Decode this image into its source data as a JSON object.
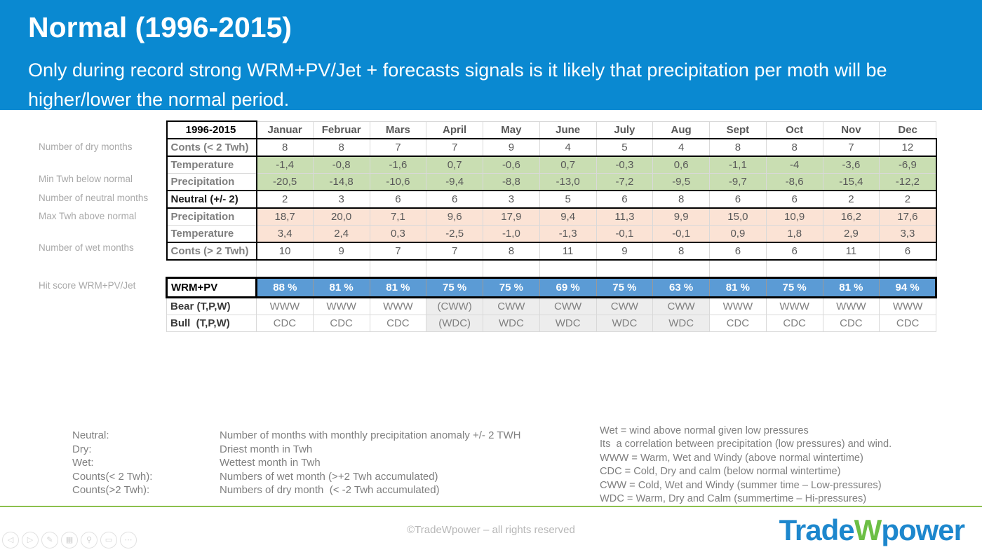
{
  "slide": {
    "title": "Normal (1996-2015)",
    "subtitle": "Only during record strong WRM+PV/Jet + forecasts signals is it likely that precipitation per moth will be higher/lower the normal period."
  },
  "annotations": {
    "left_labels": [
      "Number of dry months",
      "Min Twh below normal",
      "Number of neutral months",
      "Max Twh above normal",
      "Number of wet months",
      "Hit score WRM+PV/Jet"
    ]
  },
  "table": {
    "header": {
      "label": "1996-2015",
      "months": [
        "Januar",
        "Februar",
        "Mars",
        "April",
        "May",
        "June",
        "July",
        "Aug",
        "Sept",
        "Oct",
        "Nov",
        "Dec"
      ]
    },
    "rows": [
      {
        "type": "dry-count",
        "label": "Conts (< 2 Twh)",
        "values": [
          "8",
          "8",
          "7",
          "7",
          "9",
          "4",
          "5",
          "4",
          "8",
          "8",
          "7",
          "12"
        ]
      },
      {
        "type": "min-temp",
        "label": "Temperature",
        "values": [
          "-1,4",
          "-0,8",
          "-1,6",
          "0,7",
          "-0,6",
          "0,7",
          "-0,3",
          "0,6",
          "-1,1",
          "-4",
          "-3,6",
          "-6,9"
        ]
      },
      {
        "type": "min-precip",
        "label": "Precipitation",
        "values": [
          "-20,5",
          "-14,8",
          "-10,6",
          "-9,4",
          "-8,8",
          "-13,0",
          "-7,2",
          "-9,5",
          "-9,7",
          "-8,6",
          "-15,4",
          "-12,2"
        ]
      },
      {
        "type": "neutral",
        "label": "Neutral (+/- 2)",
        "values": [
          "2",
          "3",
          "6",
          "6",
          "3",
          "5",
          "6",
          "8",
          "6",
          "6",
          "2",
          "2"
        ]
      },
      {
        "type": "max-precip",
        "label": "Precipitation",
        "values": [
          "18,7",
          "20,0",
          "7,1",
          "9,6",
          "17,9",
          "9,4",
          "11,3",
          "9,9",
          "15,0",
          "10,9",
          "16,2",
          "17,6"
        ]
      },
      {
        "type": "max-temp",
        "label": "Temperature",
        "values": [
          "3,4",
          "2,4",
          "0,3",
          "-2,5",
          "-1,0",
          "-1,3",
          "-0,1",
          "-0,1",
          "0,9",
          "1,8",
          "2,9",
          "3,3"
        ]
      },
      {
        "type": "wet-count",
        "label": "Conts (> 2 Twh)",
        "values": [
          "10",
          "9",
          "7",
          "7",
          "8",
          "11",
          "9",
          "8",
          "6",
          "6",
          "11",
          "6"
        ]
      },
      {
        "type": "spacer",
        "label": "",
        "values": [
          "",
          "",
          "",
          "",
          "",
          "",
          "",
          "",
          "",
          "",
          "",
          ""
        ]
      },
      {
        "type": "hit-score",
        "label": "WRM+PV",
        "values": [
          "88 %",
          "81 %",
          "81 %",
          "75 %",
          "75 %",
          "69 %",
          "75 %",
          "63 %",
          "81 %",
          "75 %",
          "81 %",
          "94 %"
        ]
      },
      {
        "type": "bear",
        "label": "Bear (T,P,W)",
        "values": [
          "WWW",
          "WWW",
          "WWW",
          "(CWW)",
          "CWW",
          "CWW",
          "CWW",
          "CWW",
          "WWW",
          "WWW",
          "WWW",
          "WWW"
        ]
      },
      {
        "type": "bull",
        "label": "Bull  (T,P,W)",
        "values": [
          "CDC",
          "CDC",
          "CDC",
          "(WDC)",
          "WDC",
          "WDC",
          "WDC",
          "WDC",
          "CDC",
          "CDC",
          "CDC",
          "CDC"
        ]
      }
    ],
    "summer_columns": [
      3,
      4,
      5,
      6,
      7
    ]
  },
  "legend_left": {
    "terms": [
      "Neutral:",
      "Dry:",
      "Wet:",
      "Counts(< 2 Twh):",
      "Counts(>2 Twh):"
    ],
    "descriptions": [
      "Number of months with monthly precipitation anomaly +/- 2 TWH",
      "Driest month in Twh",
      "Wettest month in Twh",
      "Numbers of wet month (>+2 Twh accumulated)",
      "Numbers of dry month  (< -2 Twh accumulated)"
    ]
  },
  "legend_right": {
    "lines": [
      "Wet = wind above normal given low pressures",
      "Its  a correlation between precipitation (low pressures) and wind.",
      "WWW = Warm, Wet and Windy (above normal wintertime)",
      "CDC = Cold, Dry and calm (below normal wintertime)",
      "CWW = Cold, Wet and Windy (summer time – Low-pressures)",
      "WDC = Warm, Dry and Calm (summertime – Hi-pressures)"
    ]
  },
  "footer": {
    "copyright": "©TradeWpower – all rights reserved",
    "logo": {
      "part1": "Trade",
      "part2": "W",
      "part3": "power"
    },
    "toolbar_icons": [
      {
        "name": "previous-slide-icon",
        "glyph": "◁"
      },
      {
        "name": "next-slide-icon",
        "glyph": "▷"
      },
      {
        "name": "pen-icon",
        "glyph": "✎"
      },
      {
        "name": "all-slides-icon",
        "glyph": "▦"
      },
      {
        "name": "zoom-icon",
        "glyph": "⚲"
      },
      {
        "name": "presenter-view-icon",
        "glyph": "▭"
      },
      {
        "name": "more-options-icon",
        "glyph": "⋯"
      }
    ]
  },
  "colors": {
    "header_blue": "#0a89d1",
    "hit_blue": "#5b9bd5",
    "green_row": "#c9deb2",
    "peach_row": "#fbe3d5",
    "summer_gray": "#ededed",
    "divider_green": "#8cc04d",
    "logo_blue": "#1d87cd",
    "logo_green": "#6cbf45"
  }
}
